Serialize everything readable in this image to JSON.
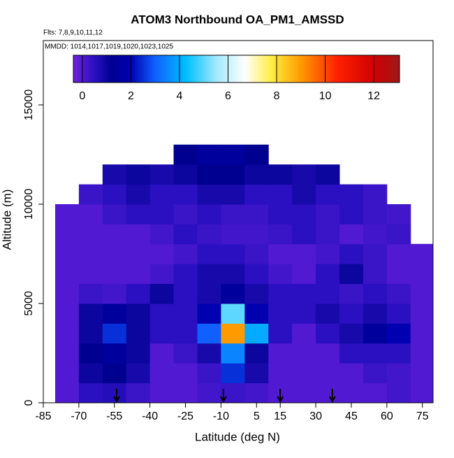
{
  "chart_data": {
    "type": "heatmap",
    "title": "ATOM3 Northbound OA_PM1_AMSSD",
    "flights_label": "Flts: 7,8,9,10,11,12",
    "dates_label": "MMDD: 1014,1017,1019,1020,1023,1025",
    "x_label": "Latitude (deg N)",
    "y_label": "Altitude (m)",
    "xlim": [
      -85,
      79.5
    ],
    "ylim": [
      0,
      18240
    ],
    "xticks": [
      -85,
      -70,
      -55,
      -40,
      -25,
      -10,
      5,
      15,
      30,
      45,
      60,
      75
    ],
    "yticks": [
      0,
      5000,
      10000,
      15000
    ],
    "x": [
      -80,
      -70,
      -60,
      -50,
      -40,
      -30,
      -20,
      -10,
      0,
      10,
      20,
      30,
      40,
      50,
      60,
      70,
      80
    ],
    "y": [
      0,
      1000,
      2000,
      3000,
      4000,
      5000,
      6000,
      7000,
      8000,
      9000,
      10000,
      11000,
      12000,
      13000
    ],
    "z": [
      [
        0,
        0.5,
        0.6,
        0.3,
        0,
        0,
        0.2,
        0.3,
        0.2,
        0,
        0,
        0,
        0,
        0,
        0.2,
        0
      ],
      [
        0,
        1,
        1.2,
        0.8,
        0,
        0,
        0.3,
        2.5,
        0.8,
        0,
        0,
        0,
        0,
        0.3,
        0.2,
        0
      ],
      [
        0,
        1.2,
        1.5,
        1,
        0,
        0.3,
        0.8,
        3.5,
        1,
        0,
        0,
        0,
        0.5,
        0.5,
        0.5,
        0
      ],
      [
        0,
        1,
        2.5,
        1,
        0.5,
        0.5,
        3,
        9,
        4,
        0.5,
        0,
        0.5,
        0.8,
        1.5,
        2,
        0
      ],
      [
        0,
        1,
        1.5,
        1,
        0.5,
        0.5,
        2,
        5,
        2,
        0.5,
        0.5,
        0.8,
        0.5,
        0.8,
        0.5,
        0
      ],
      [
        0,
        0.3,
        0.2,
        0.5,
        1,
        0.5,
        0.8,
        1.5,
        0.8,
        0.5,
        0.5,
        0.5,
        0.3,
        0.5,
        0.3,
        0
      ],
      [
        0,
        0,
        0,
        0,
        0.2,
        0.5,
        0.8,
        0.8,
        0.5,
        0.2,
        0,
        0.5,
        1,
        0.3,
        0,
        0
      ],
      [
        0,
        0,
        0,
        0,
        0,
        0.2,
        0.5,
        0.5,
        0.3,
        0,
        0,
        0.2,
        0.5,
        0.3,
        0,
        0
      ],
      [
        0,
        0,
        0,
        0,
        0.2,
        0.5,
        0.3,
        0.2,
        0.2,
        0.3,
        0.5,
        0.3,
        0,
        0.2,
        0.3,
        null
      ],
      [
        0,
        0,
        0.3,
        0.5,
        0.5,
        0.3,
        0.5,
        0.3,
        0.3,
        0.5,
        0.5,
        0.3,
        0.5,
        0.3,
        0.2,
        null
      ],
      [
        null,
        0.3,
        0.5,
        0.8,
        0.5,
        0.5,
        0.8,
        0.8,
        0.5,
        0.5,
        0.8,
        0.5,
        0.5,
        0.3,
        null,
        null
      ],
      [
        null,
        null,
        0.8,
        1,
        0.8,
        1,
        1.2,
        1.2,
        1,
        1,
        0.8,
        1,
        null,
        null,
        null,
        null
      ],
      [
        null,
        null,
        null,
        null,
        null,
        1.2,
        1.5,
        1.5,
        1.2,
        null,
        null,
        null,
        null,
        null,
        null,
        null
      ]
    ],
    "colorbar_lim": [
      -0.37,
      13.06
    ],
    "colorbar_ticks": [
      0,
      2,
      4,
      6,
      8,
      10,
      12
    ],
    "colormap": [
      {
        "value": -0.37,
        "color": "#7020e0"
      },
      {
        "value": 0.5,
        "color": "#2a10c0"
      },
      {
        "value": 1.2,
        "color": "#000090"
      },
      {
        "value": 2,
        "color": "#0000b0"
      },
      {
        "value": 3,
        "color": "#1060ff"
      },
      {
        "value": 4.3,
        "color": "#00c0ff"
      },
      {
        "value": 5.5,
        "color": "#a0e8ff"
      },
      {
        "value": 6.7,
        "color": "#ffffff"
      },
      {
        "value": 7.8,
        "color": "#ffee40"
      },
      {
        "value": 9,
        "color": "#ff9a00"
      },
      {
        "value": 10.5,
        "color": "#ff2000"
      },
      {
        "value": 12,
        "color": "#d00000"
      },
      {
        "value": 13.06,
        "color": "#a01818"
      }
    ],
    "arrows_x": [
      -54,
      -9,
      15,
      37
    ]
  }
}
